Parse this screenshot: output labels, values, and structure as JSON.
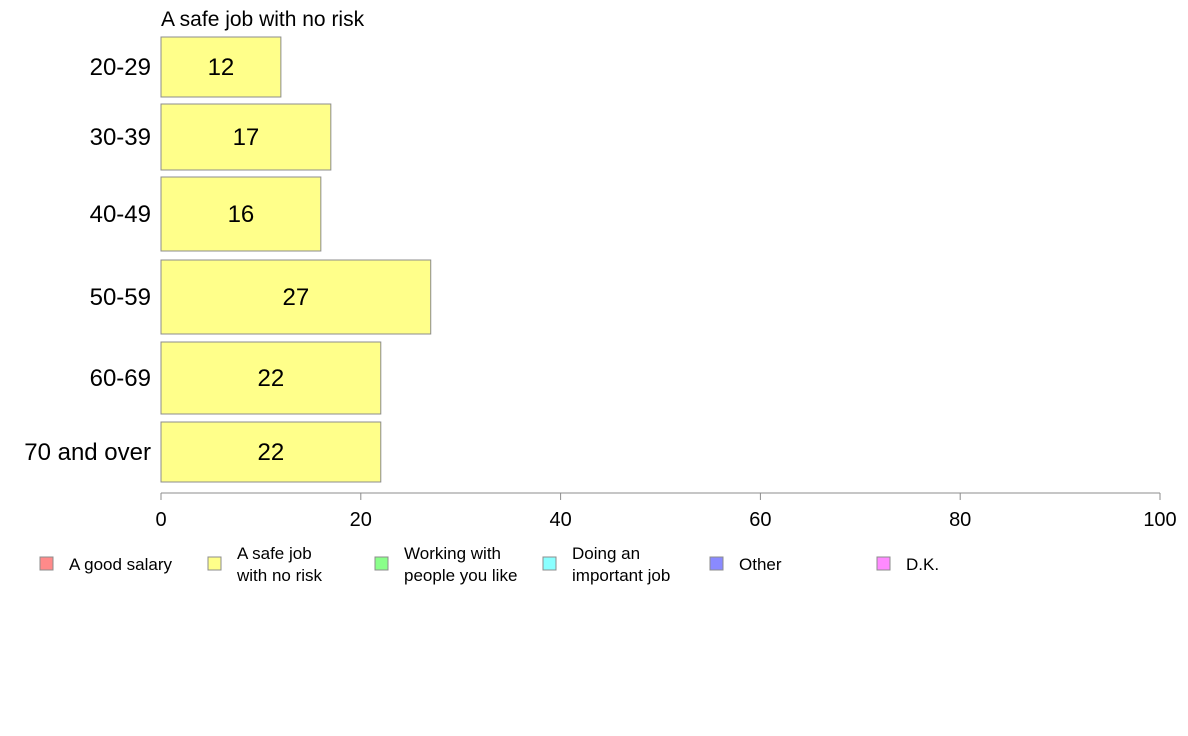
{
  "chart_data": {
    "type": "bar",
    "orientation": "horizontal",
    "title": "A safe job with no risk",
    "categories": [
      "20-29",
      "30-39",
      "40-49",
      "50-59",
      "60-69",
      "70 and over"
    ],
    "series": [
      {
        "name": "A safe job with no risk",
        "values": [
          12,
          17,
          16,
          27,
          22,
          22
        ]
      }
    ],
    "data_labels": [
      "12",
      "17",
      "16",
      "27",
      "22",
      "22"
    ],
    "xlim": [
      0,
      100
    ],
    "xticks": [
      "0",
      "20",
      "40",
      "60",
      "80",
      "100"
    ],
    "grid": false,
    "legend": {
      "placement": "bottom",
      "items": [
        {
          "lines": [
            "A good salary"
          ],
          "color": "#ff8a8a"
        },
        {
          "lines": [
            "A safe job",
            "with no risk"
          ],
          "color": "#ffff8a"
        },
        {
          "lines": [
            "Working with",
            "people you like"
          ],
          "color": "#8aff8a"
        },
        {
          "lines": [
            "Doing an",
            "important job"
          ],
          "color": "#8affff"
        },
        {
          "lines": [
            "Other"
          ],
          "color": "#8a8aff"
        },
        {
          "lines": [
            "D.K."
          ],
          "color": "#ff8aff"
        }
      ]
    },
    "bar_color": "#ffff8a"
  }
}
